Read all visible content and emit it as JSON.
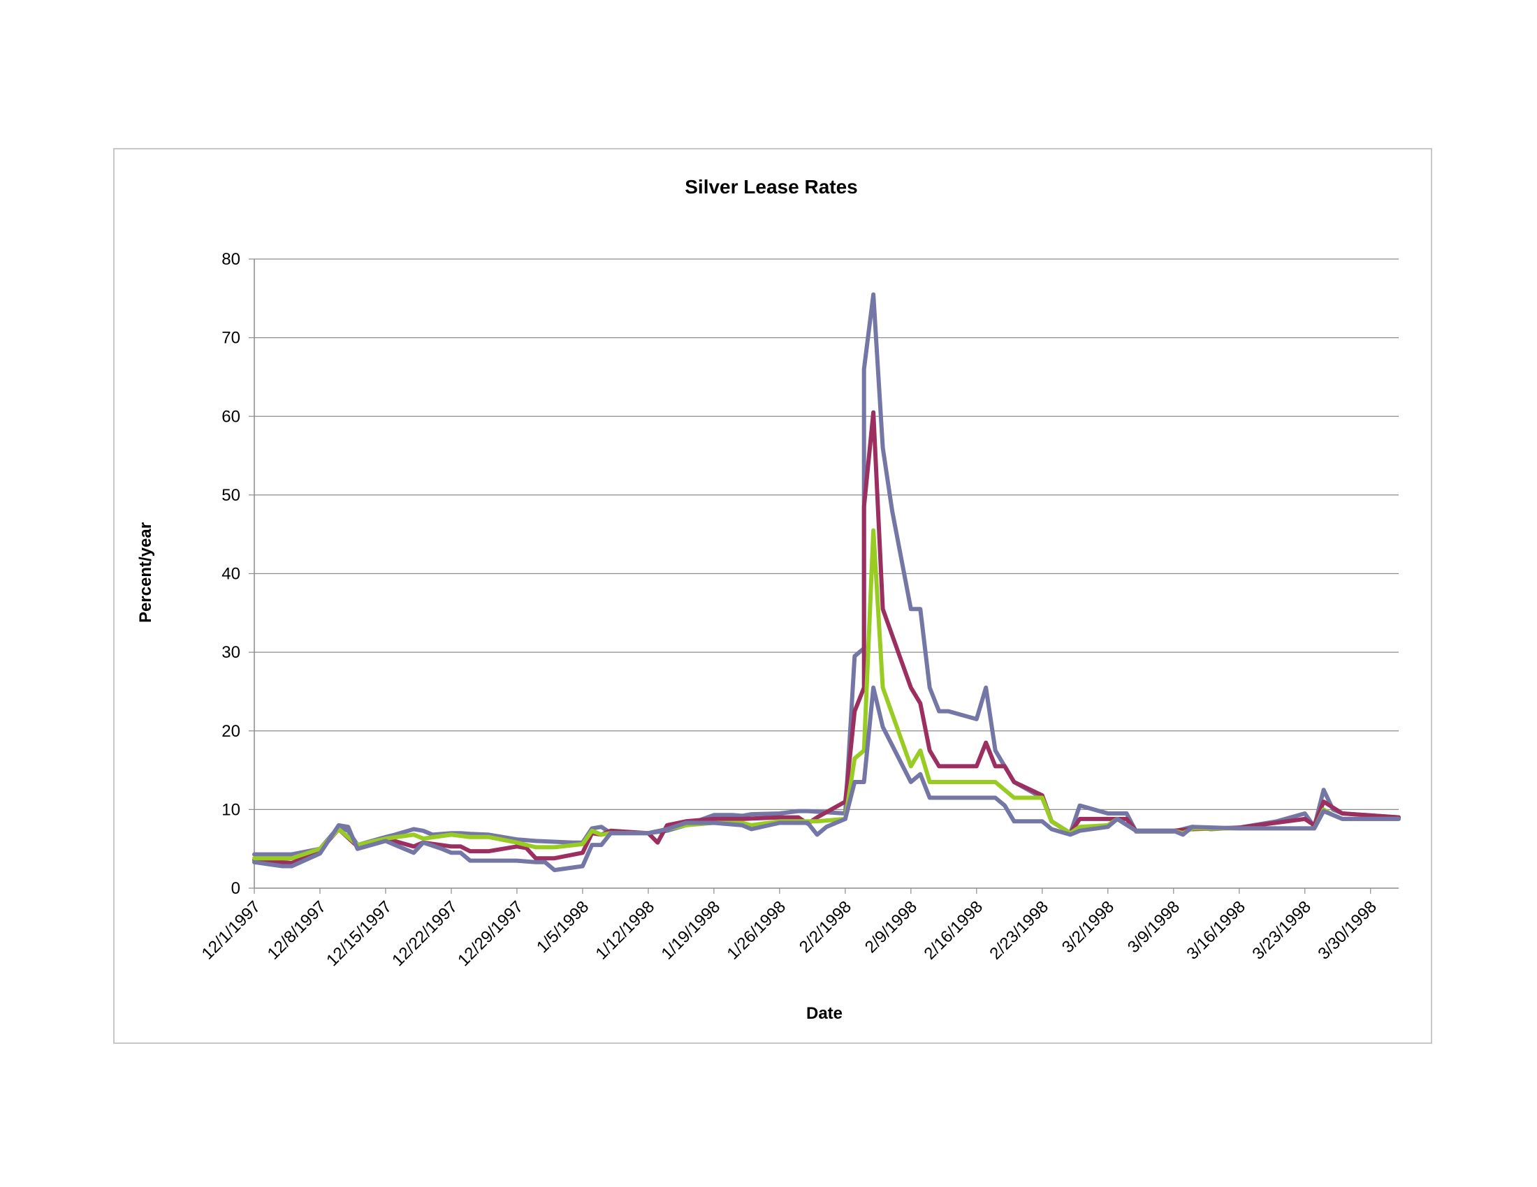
{
  "chart_data": {
    "type": "line",
    "title": "Silver Lease Rates",
    "xlabel": "Date",
    "ylabel": "Percent/year",
    "ylim": [
      0,
      80
    ],
    "yticks": [
      0,
      10,
      20,
      30,
      40,
      50,
      60,
      70,
      80
    ],
    "xrange_dates": [
      "12/1/1997",
      "4/2/1998"
    ],
    "xtick_labels": [
      "12/1/1997",
      "12/8/1997",
      "12/15/1997",
      "12/22/1997",
      "12/29/1997",
      "1/5/1998",
      "1/12/1998",
      "1/19/1998",
      "1/26/1998",
      "2/2/1998",
      "2/9/1998",
      "2/16/1998",
      "2/23/1998",
      "3/2/1998",
      "3/9/1998",
      "3/16/1998",
      "3/23/1998",
      "3/30/1998"
    ],
    "grid": true,
    "legend": "none",
    "series": [
      {
        "color": "#7476a6",
        "points": [
          [
            "12/1/1997",
            4.3
          ],
          [
            "12/5/1997",
            4.3
          ],
          [
            "12/8/1997",
            5.0
          ],
          [
            "12/10/1997",
            7.8
          ],
          [
            "12/11/1997",
            7.3
          ],
          [
            "12/12/1997",
            5.5
          ],
          [
            "12/15/1997",
            6.5
          ],
          [
            "12/16/1997",
            6.8
          ],
          [
            "12/18/1997",
            7.5
          ],
          [
            "12/19/1997",
            7.3
          ],
          [
            "12/20/1997",
            6.8
          ],
          [
            "12/22/1997",
            7.0
          ],
          [
            "12/23/1997",
            7.0
          ],
          [
            "12/24/1997",
            6.9
          ],
          [
            "12/26/1997",
            6.8
          ],
          [
            "12/29/1997",
            6.2
          ],
          [
            "12/30/1997",
            6.1
          ],
          [
            "12/31/1997",
            6.0
          ],
          [
            "1/4/1998",
            5.8
          ],
          [
            "1/5/1998",
            5.8
          ],
          [
            "1/6/1998",
            7.6
          ],
          [
            "1/7/1998",
            7.8
          ],
          [
            "1/8/1998",
            7.0
          ],
          [
            "1/12/1998",
            7.0
          ],
          [
            "1/14/1998",
            7.3
          ],
          [
            "1/16/1998",
            8.0
          ],
          [
            "1/19/1998",
            9.3
          ],
          [
            "1/21/1998",
            9.3
          ],
          [
            "1/22/1998",
            9.2
          ],
          [
            "1/23/1998",
            9.4
          ],
          [
            "1/26/1998",
            9.5
          ],
          [
            "1/28/1998",
            9.8
          ],
          [
            "1/29/1998",
            9.8
          ],
          [
            "2/2/1998",
            9.5
          ],
          [
            "2/3/1998",
            29.5
          ],
          [
            "2/4/1998",
            30.5
          ],
          [
            "2/4/1998",
            66.0
          ],
          [
            "2/5/1998",
            75.5
          ],
          [
            "2/6/1998",
            56.0
          ],
          [
            "2/7/1998",
            48.0
          ],
          [
            "2/9/1998",
            35.5
          ],
          [
            "2/10/1998",
            35.5
          ],
          [
            "2/11/1998",
            25.5
          ],
          [
            "2/12/1998",
            22.5
          ],
          [
            "2/13/1998",
            22.5
          ],
          [
            "2/16/1998",
            21.5
          ],
          [
            "2/17/1998",
            25.5
          ],
          [
            "2/18/1998",
            17.5
          ],
          [
            "2/20/1998",
            13.5
          ],
          [
            "2/23/1998",
            11.5
          ],
          [
            "2/24/1998",
            8.5
          ],
          [
            "2/26/1998",
            7.0
          ],
          [
            "2/27/1998",
            10.5
          ],
          [
            "3/2/1998",
            9.5
          ],
          [
            "3/3/1998",
            9.5
          ],
          [
            "3/4/1998",
            9.5
          ],
          [
            "3/5/1998",
            7.2
          ],
          [
            "3/9/1998",
            7.2
          ],
          [
            "3/11/1998",
            7.8
          ],
          [
            "3/13/1998",
            7.5
          ],
          [
            "3/16/1998",
            7.7
          ],
          [
            "3/20/1998",
            8.5
          ],
          [
            "3/23/1998",
            9.5
          ],
          [
            "3/24/1998",
            7.8
          ],
          [
            "3/25/1998",
            12.5
          ],
          [
            "3/26/1998",
            10.0
          ],
          [
            "3/27/1998",
            9.5
          ],
          [
            "4/2/1998",
            9.0
          ]
        ]
      },
      {
        "color": "#9b3060",
        "points": [
          [
            "12/1/1997",
            3.6
          ],
          [
            "12/5/1997",
            3.2
          ],
          [
            "12/8/1997",
            4.8
          ],
          [
            "12/10/1997",
            7.5
          ],
          [
            "12/12/1997",
            5.3
          ],
          [
            "12/15/1997",
            6.3
          ],
          [
            "12/18/1997",
            5.3
          ],
          [
            "12/19/1997",
            5.8
          ],
          [
            "12/22/1997",
            5.3
          ],
          [
            "12/23/1997",
            5.3
          ],
          [
            "12/24/1997",
            4.7
          ],
          [
            "12/26/1997",
            4.7
          ],
          [
            "12/29/1997",
            5.3
          ],
          [
            "12/30/1997",
            5.1
          ],
          [
            "12/31/1997",
            3.8
          ],
          [
            "1/2/1998",
            3.8
          ],
          [
            "1/5/1998",
            4.5
          ],
          [
            "1/6/1998",
            7.0
          ],
          [
            "1/7/1998",
            6.8
          ],
          [
            "1/8/1998",
            7.3
          ],
          [
            "1/12/1998",
            7.0
          ],
          [
            "1/13/1998",
            5.8
          ],
          [
            "1/14/1998",
            8.0
          ],
          [
            "1/16/1998",
            8.5
          ],
          [
            "1/19/1998",
            8.8
          ],
          [
            "1/21/1998",
            8.8
          ],
          [
            "1/22/1998",
            8.8
          ],
          [
            "1/26/1998",
            9.0
          ],
          [
            "1/28/1998",
            9.0
          ],
          [
            "1/29/1998",
            8.2
          ],
          [
            "1/30/1998",
            9.0
          ],
          [
            "2/2/1998",
            11.0
          ],
          [
            "2/3/1998",
            22.5
          ],
          [
            "2/4/1998",
            25.5
          ],
          [
            "2/4/1998",
            48.5
          ],
          [
            "2/5/1998",
            60.5
          ],
          [
            "2/6/1998",
            35.5
          ],
          [
            "2/9/1998",
            25.5
          ],
          [
            "2/10/1998",
            23.5
          ],
          [
            "2/11/1998",
            17.5
          ],
          [
            "2/12/1998",
            15.5
          ],
          [
            "2/16/1998",
            15.5
          ],
          [
            "2/17/1998",
            18.5
          ],
          [
            "2/18/1998",
            15.5
          ],
          [
            "2/19/1998",
            15.5
          ],
          [
            "2/20/1998",
            13.5
          ],
          [
            "2/23/1998",
            11.8
          ],
          [
            "2/24/1998",
            8.5
          ],
          [
            "2/26/1998",
            7.0
          ],
          [
            "2/27/1998",
            8.8
          ],
          [
            "3/2/1998",
            8.8
          ],
          [
            "3/4/1998",
            8.8
          ],
          [
            "3/5/1998",
            7.3
          ],
          [
            "3/9/1998",
            7.3
          ],
          [
            "3/11/1998",
            7.5
          ],
          [
            "3/16/1998",
            7.7
          ],
          [
            "3/23/1998",
            8.8
          ],
          [
            "3/24/1998",
            8.0
          ],
          [
            "3/25/1998",
            11.0
          ],
          [
            "3/27/1998",
            9.5
          ],
          [
            "4/2/1998",
            9.0
          ]
        ]
      },
      {
        "color": "#99cc22",
        "points": [
          [
            "12/1/1997",
            3.8
          ],
          [
            "12/5/1997",
            3.8
          ],
          [
            "12/8/1997",
            5.0
          ],
          [
            "12/10/1997",
            7.5
          ],
          [
            "12/12/1997",
            5.5
          ],
          [
            "12/15/1997",
            6.3
          ],
          [
            "12/18/1997",
            6.8
          ],
          [
            "12/19/1997",
            6.3
          ],
          [
            "12/22/1997",
            6.8
          ],
          [
            "12/24/1997",
            6.5
          ],
          [
            "12/26/1997",
            6.5
          ],
          [
            "12/29/1997",
            5.8
          ],
          [
            "12/31/1997",
            5.2
          ],
          [
            "1/2/1998",
            5.2
          ],
          [
            "1/5/1998",
            5.6
          ],
          [
            "1/6/1998",
            7.3
          ],
          [
            "1/7/1998",
            6.8
          ],
          [
            "1/8/1998",
            7.0
          ],
          [
            "1/12/1998",
            7.0
          ],
          [
            "1/14/1998",
            7.5
          ],
          [
            "1/16/1998",
            8.0
          ],
          [
            "1/19/1998",
            8.3
          ],
          [
            "1/22/1998",
            8.3
          ],
          [
            "1/23/1998",
            8.0
          ],
          [
            "1/26/1998",
            8.5
          ],
          [
            "1/30/1998",
            8.5
          ],
          [
            "2/2/1998",
            8.8
          ],
          [
            "2/3/1998",
            16.5
          ],
          [
            "2/4/1998",
            17.5
          ],
          [
            "2/5/1998",
            45.5
          ],
          [
            "2/6/1998",
            25.5
          ],
          [
            "2/9/1998",
            15.5
          ],
          [
            "2/10/1998",
            17.5
          ],
          [
            "2/11/1998",
            13.5
          ],
          [
            "2/16/1998",
            13.5
          ],
          [
            "2/18/1998",
            13.5
          ],
          [
            "2/20/1998",
            11.5
          ],
          [
            "2/23/1998",
            11.5
          ],
          [
            "2/24/1998",
            8.5
          ],
          [
            "2/26/1998",
            7.0
          ],
          [
            "2/27/1998",
            7.8
          ],
          [
            "3/2/1998",
            8.0
          ],
          [
            "3/3/1998",
            8.8
          ],
          [
            "3/5/1998",
            7.3
          ],
          [
            "3/9/1998",
            7.3
          ],
          [
            "3/10/1998",
            7.0
          ],
          [
            "3/11/1998",
            7.6
          ],
          [
            "3/16/1998",
            7.6
          ],
          [
            "3/23/1998",
            7.6
          ],
          [
            "3/24/1998",
            7.6
          ],
          [
            "3/25/1998",
            10.0
          ],
          [
            "3/26/1998",
            9.3
          ],
          [
            "3/27/1998",
            8.8
          ],
          [
            "4/2/1998",
            8.8
          ]
        ]
      },
      {
        "color": "#7476a6",
        "points": [
          [
            "12/1/1997",
            3.3
          ],
          [
            "12/4/1997",
            2.8
          ],
          [
            "12/5/1997",
            2.8
          ],
          [
            "12/8/1997",
            4.4
          ],
          [
            "12/10/1997",
            8.0
          ],
          [
            "12/11/1997",
            7.8
          ],
          [
            "12/12/1997",
            5.0
          ],
          [
            "12/15/1997",
            6.0
          ],
          [
            "12/16/1997",
            5.5
          ],
          [
            "12/18/1997",
            4.5
          ],
          [
            "12/19/1997",
            5.8
          ],
          [
            "12/21/1997",
            5.0
          ],
          [
            "12/22/1997",
            4.5
          ],
          [
            "12/23/1997",
            4.5
          ],
          [
            "12/24/1997",
            3.5
          ],
          [
            "12/26/1997",
            3.5
          ],
          [
            "12/29/1997",
            3.5
          ],
          [
            "12/31/1997",
            3.3
          ],
          [
            "1/1/1998",
            3.3
          ],
          [
            "1/2/1998",
            2.3
          ],
          [
            "1/5/1998",
            2.8
          ],
          [
            "1/6/1998",
            5.5
          ],
          [
            "1/7/1998",
            5.5
          ],
          [
            "1/8/1998",
            7.0
          ],
          [
            "1/12/1998",
            7.0
          ],
          [
            "1/14/1998",
            7.5
          ],
          [
            "1/16/1998",
            8.3
          ],
          [
            "1/19/1998",
            8.3
          ],
          [
            "1/22/1998",
            8.0
          ],
          [
            "1/23/1998",
            7.5
          ],
          [
            "1/26/1998",
            8.3
          ],
          [
            "1/29/1998",
            8.3
          ],
          [
            "1/30/1998",
            6.8
          ],
          [
            "1/31/1998",
            7.8
          ],
          [
            "2/2/1998",
            8.8
          ],
          [
            "2/3/1998",
            13.5
          ],
          [
            "2/4/1998",
            13.5
          ],
          [
            "2/5/1998",
            25.5
          ],
          [
            "2/6/1998",
            20.5
          ],
          [
            "2/9/1998",
            13.5
          ],
          [
            "2/10/1998",
            14.5
          ],
          [
            "2/11/1998",
            11.5
          ],
          [
            "2/16/1998",
            11.5
          ],
          [
            "2/18/1998",
            11.5
          ],
          [
            "2/19/1998",
            10.5
          ],
          [
            "2/20/1998",
            8.5
          ],
          [
            "2/23/1998",
            8.5
          ],
          [
            "2/24/1998",
            7.5
          ],
          [
            "2/26/1998",
            6.8
          ],
          [
            "2/27/1998",
            7.3
          ],
          [
            "3/2/1998",
            7.8
          ],
          [
            "3/3/1998",
            8.8
          ],
          [
            "3/5/1998",
            7.3
          ],
          [
            "3/9/1998",
            7.3
          ],
          [
            "3/10/1998",
            6.8
          ],
          [
            "3/11/1998",
            7.8
          ],
          [
            "3/16/1998",
            7.6
          ],
          [
            "3/23/1998",
            7.6
          ],
          [
            "3/24/1998",
            7.6
          ],
          [
            "3/25/1998",
            9.8
          ],
          [
            "3/26/1998",
            9.3
          ],
          [
            "3/27/1998",
            8.8
          ],
          [
            "4/2/1998",
            8.8
          ]
        ]
      }
    ]
  }
}
